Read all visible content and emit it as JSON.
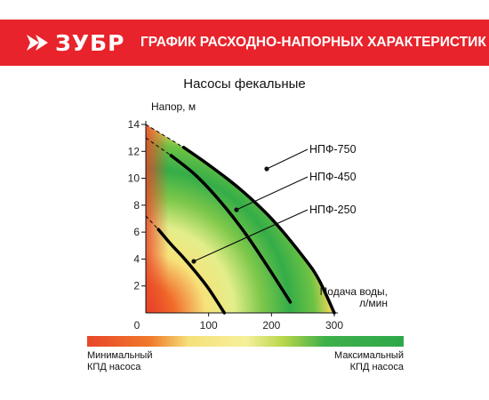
{
  "header": {
    "brand": "ЗУБР",
    "title": "ГРАФИК РАСХОДНО-НАПОРНЫХ ХАРАКТЕРИСТИК",
    "background_color": "#e8232b"
  },
  "chart_data": {
    "type": "line",
    "title": "Насосы фекальные",
    "ylabel": "Напор, м",
    "xlabel_line1": "Подача воды,",
    "xlabel_line2": "л/мин",
    "xlim": [
      0,
      300
    ],
    "ylim": [
      0,
      14
    ],
    "x_ticks": [
      "0",
      "100",
      "200",
      "300"
    ],
    "y_ticks": [
      "2",
      "4",
      "6",
      "8",
      "10",
      "12",
      "14"
    ],
    "series": [
      {
        "name": "НПФ-750",
        "x": [
          0,
          60,
          100,
          150,
          200,
          250,
          275,
          300
        ],
        "y": [
          14,
          12.3,
          11,
          9.2,
          7,
          4.2,
          2.5,
          0
        ]
      },
      {
        "name": "НПФ-450",
        "x": [
          0,
          40,
          80,
          120,
          160,
          200,
          230
        ],
        "y": [
          13,
          11.7,
          10.2,
          8.2,
          5.8,
          3,
          0.8
        ]
      },
      {
        "name": "НПФ-250",
        "x": [
          0,
          20,
          40,
          60,
          80,
          100,
          125
        ],
        "y": [
          7.2,
          6.2,
          5.1,
          4.1,
          3,
          1.8,
          0
        ]
      }
    ],
    "solid_from_x": [
      60,
      40,
      20
    ],
    "background": "efficiency gradient",
    "line_color": "#000000",
    "grid": false
  },
  "legend_bar": {
    "left_label_line1": "Минимальный",
    "left_label_line2": "КПД насоса",
    "right_label_line1": "Максимальный",
    "right_label_line2": "КПД насоса",
    "colors": [
      "#e8462b",
      "#f6f09a",
      "#2ea84a"
    ]
  }
}
